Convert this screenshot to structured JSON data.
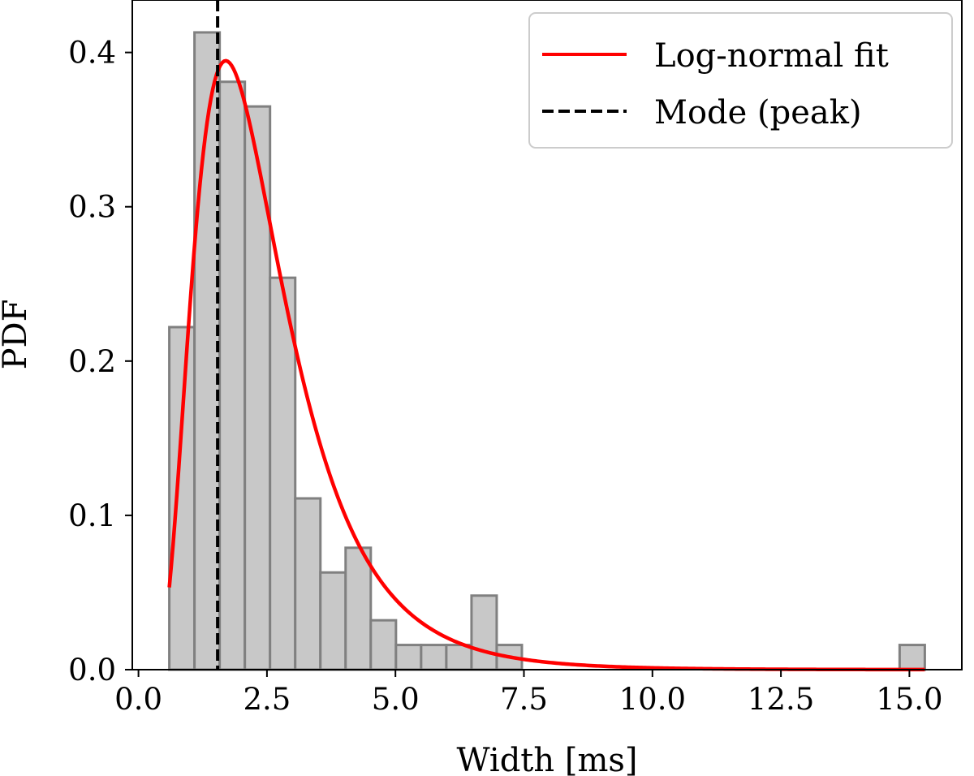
{
  "chart_data": {
    "type": "bar",
    "title": "",
    "xlabel": "Width [ms]",
    "ylabel": "PDF",
    "xlim": [
      -0.12,
      16.02
    ],
    "ylim": [
      0.0,
      0.434
    ],
    "xticks": [
      0.0,
      2.5,
      5.0,
      7.5,
      10.0,
      12.5,
      15.0
    ],
    "xtick_labels": [
      "0.0",
      "2.5",
      "5.0",
      "7.5",
      "10.0",
      "12.5",
      "15.0"
    ],
    "yticks": [
      0.0,
      0.1,
      0.2,
      0.3,
      0.4
    ],
    "ytick_labels": [
      "0.0",
      "0.1",
      "0.2",
      "0.3",
      "0.4"
    ],
    "histogram": {
      "bin_start": 0.6,
      "bin_width": 0.49,
      "values": [
        0.222,
        0.413,
        0.381,
        0.365,
        0.254,
        0.111,
        0.063,
        0.079,
        0.032,
        0.016,
        0.016,
        0.016,
        0.048,
        0.016,
        0,
        0,
        0,
        0,
        0,
        0,
        0,
        0,
        0,
        0,
        0,
        0,
        0,
        0,
        0,
        0.016
      ],
      "face_color": "#c8c8c8",
      "edge_color": "#808080"
    },
    "series": [
      {
        "name": "Log-normal fit",
        "type": "line",
        "color": "#ff0000",
        "mu": 0.8,
        "sigma": 0.52,
        "x_range": [
          0.6,
          15.3
        ]
      },
      {
        "name": "Mode (peak)",
        "type": "vline",
        "color": "#000000",
        "style": "dashed",
        "x": 1.54
      }
    ],
    "legend_position": "top-right"
  }
}
